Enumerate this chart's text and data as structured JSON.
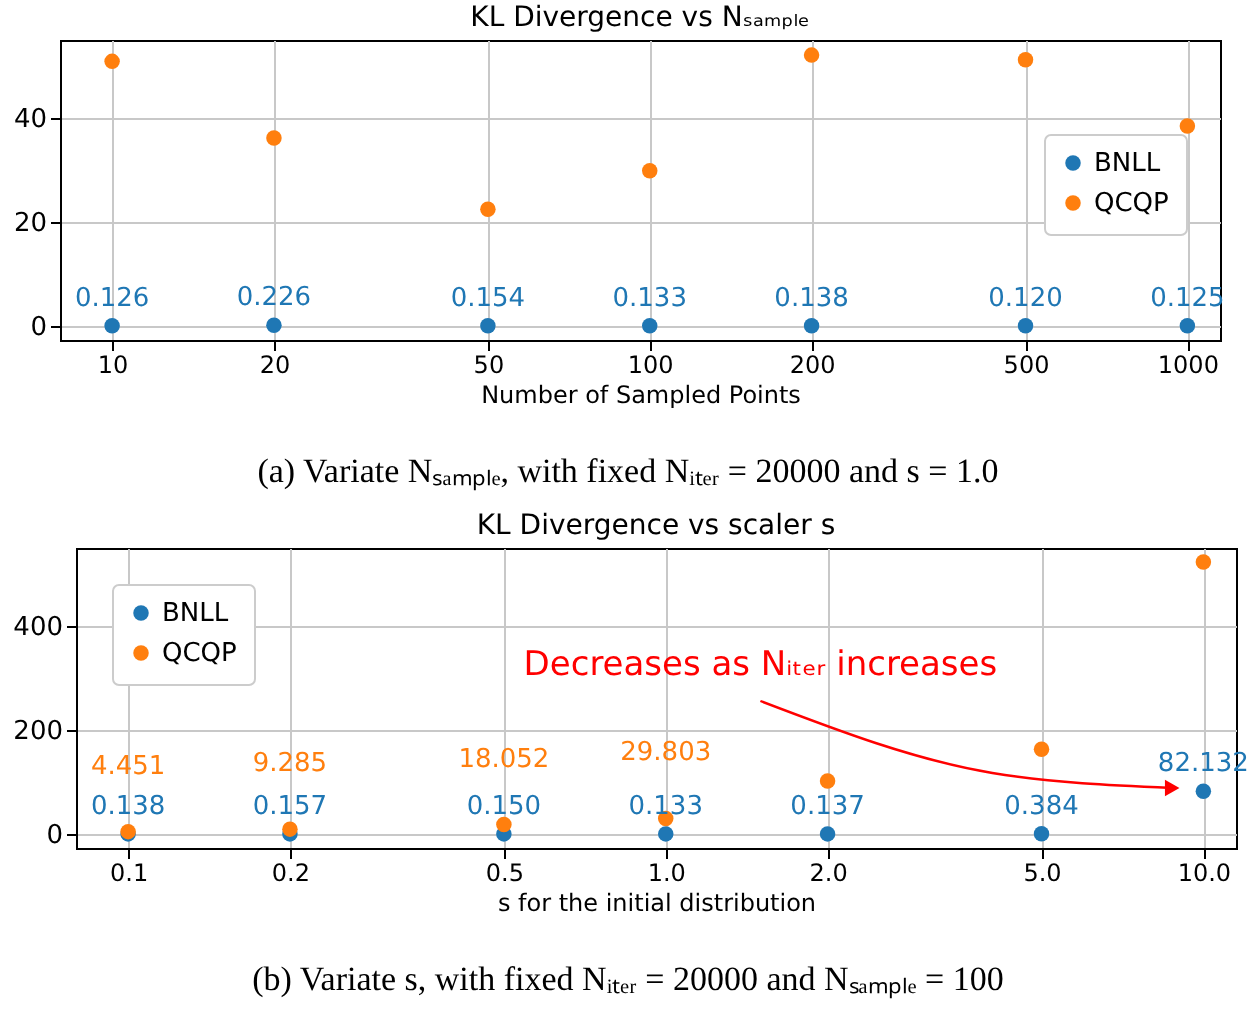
{
  "chart_data": [
    {
      "type": "scatter",
      "title": "KL Divergence vs Nₛₐₘₚₗₑ",
      "xlabel": "Number of Sampled Points",
      "log": "x",
      "grid": true,
      "legend": "right",
      "marker": "circle",
      "x": [
        10,
        20,
        50,
        100,
        200,
        500,
        1000
      ],
      "xlim": [
        8,
        1150
      ],
      "xticks": [
        10,
        20,
        50,
        100,
        200,
        500,
        1000
      ],
      "ylim": [
        -2.6,
        55
      ],
      "yticks": [
        0,
        20,
        40
      ],
      "series": [
        {
          "name": "BNLL",
          "color": "#1f77b4",
          "values": [
            0.126,
            0.226,
            0.154,
            0.133,
            0.138,
            0.12,
            0.125
          ],
          "value_labels": [
            "0.126",
            "0.226",
            "0.154",
            "0.133",
            "0.138",
            "0.120",
            "0.125"
          ]
        },
        {
          "name": "QCQP",
          "color": "#ff7f0e",
          "values": [
            50.9,
            36.2,
            22.5,
            29.9,
            52.1,
            51.2,
            38.5
          ]
        }
      ],
      "annotations": [
        "(a) Variate Nₛₐₘₚₗₑ, with fixed Nᵢₜₑᵣ = 20000 and s = 1.0"
      ]
    },
    {
      "type": "scatter",
      "title": "KL Divergence vs scaler s",
      "xlabel": "s for the initial distribution",
      "log": "x",
      "grid": true,
      "legend": "top left",
      "marker": "circle",
      "x": [
        0.1,
        0.2,
        0.5,
        1,
        2,
        5,
        10
      ],
      "xlim": [
        0.08,
        11.5
      ],
      "xticks": [
        0.1,
        0.2,
        0.5,
        {
          "value": 1,
          "label": "1.0"
        },
        {
          "value": 2,
          "label": "2.0"
        },
        {
          "value": 5,
          "label": "5.0"
        },
        {
          "value": 10,
          "label": "10.0"
        }
      ],
      "ylim": [
        -27,
        550
      ],
      "yticks": [
        0,
        200,
        400
      ],
      "series": [
        {
          "name": "BNLL",
          "color": "#1f77b4",
          "values": [
            0.138,
            0.157,
            0.15,
            0.133,
            0.137,
            0.384,
            82.132
          ],
          "value_labels": [
            "0.138",
            "0.157",
            "0.150",
            "0.133",
            "0.137",
            "0.384",
            "82.132"
          ]
        },
        {
          "name": "QCQP",
          "color": "#ff7f0e",
          "values": [
            4.451,
            9.285,
            18.052,
            29.803,
            102,
            163,
            523
          ],
          "value_labels": [
            "4.451",
            "9.285",
            "18.052",
            "29.803",
            null,
            null,
            null
          ]
        }
      ],
      "annotations": [
        "Decreases as Nᵢₜₑᵣ increases",
        "(b) Variate s, with fixed Nᵢₜₑᵣ = 20000 and Nₛₐₘₚₗₑ = 100"
      ]
    }
  ]
}
